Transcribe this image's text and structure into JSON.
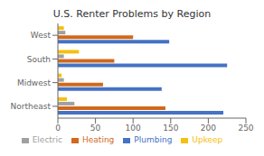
{
  "chart_data": {
    "type": "bar",
    "orientation": "horizontal",
    "title": "U.S. Renter Problems by Region",
    "categories": [
      "West",
      "South",
      "Midwest",
      "Northeast"
    ],
    "series": [
      {
        "name": "Upkeep",
        "color": "#F5C010",
        "values": [
          8,
          28,
          5,
          12
        ]
      },
      {
        "name": "Electric",
        "color": "#A0A0A0",
        "values": [
          10,
          8,
          8,
          22
        ]
      },
      {
        "name": "Heating",
        "color": "#D2681A",
        "values": [
          100,
          75,
          60,
          143
        ]
      },
      {
        "name": "Plumbing",
        "color": "#4472C4",
        "values": [
          148,
          225,
          138,
          220
        ]
      }
    ],
    "xlim": [
      0,
      250
    ],
    "xticks": [
      0,
      50,
      100,
      150,
      200,
      250
    ],
    "grid": false,
    "legend": "bottom"
  }
}
